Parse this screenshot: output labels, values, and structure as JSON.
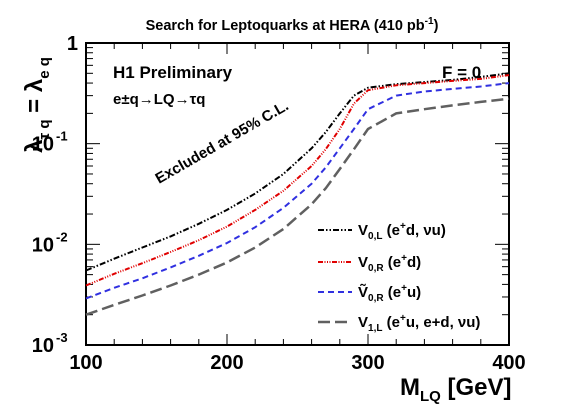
{
  "chart_data": {
    "type": "line",
    "title_main": "Search for Leptoquarks at HERA (410 pb",
    "title_sup": "-1",
    "title_end": ")",
    "xlabel_main": "M",
    "xlabel_sub": "LQ",
    "xlabel_unit": " [GeV]",
    "ylabel_lambda1": "λ",
    "ylabel_sub1": "τ q",
    "ylabel_eq": " = λ",
    "ylabel_sub2": "e q",
    "xlim": [
      100,
      400
    ],
    "ylim": [
      0.001,
      1
    ],
    "yscale": "log",
    "xticks": [
      {
        "value": 100,
        "label": "100"
      },
      {
        "value": 200,
        "label": "200"
      },
      {
        "value": 300,
        "label": "300"
      },
      {
        "value": 400,
        "label": "400"
      }
    ],
    "yticks": [
      {
        "value": 0.001,
        "base": "10",
        "exp": "-3"
      },
      {
        "value": 0.01,
        "base": "10",
        "exp": "-2"
      },
      {
        "value": 0.1,
        "base": "10",
        "exp": "-1"
      },
      {
        "value": 1,
        "base": "1",
        "exp": ""
      }
    ],
    "annotations": {
      "prelim": "H1 Preliminary",
      "process": "e±q→LQ→τq",
      "flag": "F = 0",
      "excluded": "Excluded at 95% C.L."
    },
    "series": [
      {
        "name": "V0,L (e+d, νu)",
        "legend_main": "V",
        "legend_sub": "0,L",
        "legend_rest": " (e",
        "legend_sup": "+",
        "legend_tail": "d, νu)",
        "color": "#000000",
        "dash": "6,2,1.5,2,1.5,2",
        "x": [
          100,
          120,
          140,
          160,
          180,
          200,
          220,
          240,
          260,
          270,
          280,
          290,
          300,
          320,
          340,
          360,
          380,
          400
        ],
        "y": [
          0.0055,
          0.0072,
          0.0093,
          0.012,
          0.016,
          0.022,
          0.032,
          0.05,
          0.09,
          0.13,
          0.2,
          0.3,
          0.36,
          0.39,
          0.41,
          0.43,
          0.46,
          0.5
        ]
      },
      {
        "name": "V0,R (e+d)",
        "legend_main": "V",
        "legend_sub": "0,R",
        "legend_rest": " (e",
        "legend_sup": "+",
        "legend_tail": "d)",
        "color": "#e00000",
        "dash": "5,1.5,1,1.5,1,1.5,1,1.5",
        "x": [
          100,
          120,
          140,
          160,
          180,
          200,
          220,
          240,
          260,
          270,
          280,
          290,
          300,
          320,
          340,
          360,
          380,
          400
        ],
        "y": [
          0.0039,
          0.0051,
          0.0065,
          0.0084,
          0.011,
          0.015,
          0.022,
          0.034,
          0.06,
          0.088,
          0.14,
          0.25,
          0.34,
          0.38,
          0.4,
          0.42,
          0.44,
          0.48
        ]
      },
      {
        "name": "Ṽ0,R (e+u)",
        "legend_main": "Ṽ",
        "legend_sub": "0,R",
        "legend_rest": " (e",
        "legend_sup": "+",
        "legend_tail": "u)",
        "color": "#3030e0",
        "dash": "6,4",
        "x": [
          100,
          120,
          140,
          160,
          180,
          200,
          220,
          240,
          260,
          270,
          280,
          290,
          300,
          320,
          340,
          360,
          380,
          400
        ],
        "y": [
          0.0029,
          0.0037,
          0.0046,
          0.0059,
          0.0077,
          0.0103,
          0.0148,
          0.023,
          0.04,
          0.058,
          0.09,
          0.14,
          0.22,
          0.3,
          0.33,
          0.35,
          0.37,
          0.4
        ]
      },
      {
        "name": "V1,L (e+u, e+d, νu)",
        "legend_main": "V",
        "legend_sub": "1,L",
        "legend_rest": " (e",
        "legend_sup": "+",
        "legend_tail": "u, e+d, νu)",
        "color": "#606060",
        "dash": "12,5",
        "x": [
          100,
          120,
          140,
          160,
          180,
          200,
          220,
          240,
          260,
          270,
          280,
          290,
          300,
          320,
          340,
          360,
          380,
          400
        ],
        "y": [
          0.002,
          0.0025,
          0.0031,
          0.0039,
          0.005,
          0.0066,
          0.0093,
          0.0142,
          0.025,
          0.036,
          0.056,
          0.088,
          0.14,
          0.2,
          0.22,
          0.24,
          0.26,
          0.28
        ]
      }
    ]
  }
}
